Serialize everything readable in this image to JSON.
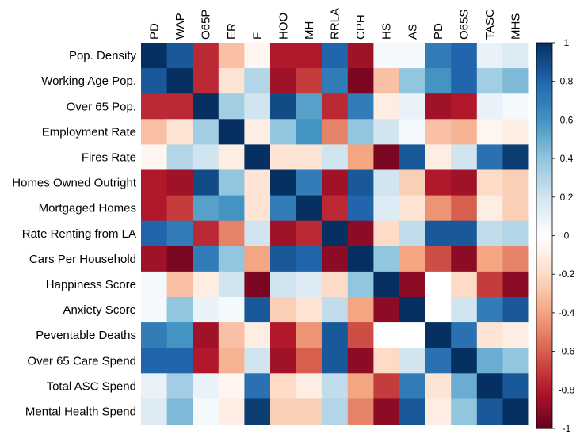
{
  "chart_data": {
    "type": "heatmap",
    "title": "",
    "row_labels": [
      "Pop. Density",
      "Working Age Pop.",
      "Over 65 Pop.",
      "Employment Rate",
      "Fires Rate",
      "Homes Owned Outright",
      "Mortgaged Homes",
      "Rate Renting from LA",
      "Cars Per Household",
      "Happiness Score",
      "Anxiety Score",
      "Peventable Deaths",
      "Over 65 Care Spend",
      "Total ASC Spend",
      "Mental Health Spend"
    ],
    "col_labels": [
      "PD",
      "WAP",
      "O65P",
      "ER",
      "F",
      "HOO",
      "MH",
      "RRLA",
      "CPH",
      "HS",
      "AS",
      "PD",
      "O65S",
      "TASC",
      "MHS"
    ],
    "values": [
      [
        1.0,
        0.85,
        -0.75,
        -0.3,
        -0.05,
        -0.8,
        -0.8,
        0.8,
        -0.85,
        0.05,
        0.05,
        0.7,
        0.8,
        0.1,
        0.15
      ],
      [
        0.85,
        1.0,
        -0.75,
        -0.15,
        0.3,
        -0.85,
        -0.7,
        0.7,
        -0.95,
        -0.3,
        0.4,
        0.6,
        0.8,
        0.35,
        0.45
      ],
      [
        -0.75,
        -0.75,
        1.0,
        0.35,
        0.2,
        0.9,
        0.55,
        -0.75,
        0.7,
        -0.1,
        0.1,
        -0.85,
        -0.8,
        0.1,
        0.05
      ],
      [
        -0.3,
        -0.15,
        0.35,
        1.0,
        -0.1,
        0.4,
        0.6,
        -0.5,
        0.4,
        0.2,
        0.05,
        -0.3,
        -0.35,
        -0.05,
        -0.1
      ],
      [
        -0.05,
        0.3,
        0.2,
        -0.1,
        1.0,
        -0.15,
        -0.15,
        0.2,
        -0.4,
        -0.95,
        0.85,
        -0.1,
        0.2,
        0.75,
        0.95
      ],
      [
        -0.8,
        -0.85,
        0.9,
        0.4,
        -0.15,
        1.0,
        0.7,
        -0.85,
        0.85,
        0.2,
        -0.25,
        -0.8,
        -0.85,
        -0.2,
        -0.25
      ],
      [
        -0.8,
        -0.7,
        0.55,
        0.6,
        -0.15,
        0.7,
        1.0,
        -0.75,
        0.8,
        0.15,
        -0.15,
        -0.45,
        -0.6,
        -0.1,
        -0.25
      ],
      [
        0.8,
        0.7,
        -0.75,
        -0.5,
        0.2,
        -0.85,
        -0.75,
        1.0,
        -0.9,
        -0.2,
        0.25,
        0.85,
        0.85,
        0.25,
        0.3
      ],
      [
        -0.85,
        -0.95,
        0.7,
        0.4,
        -0.4,
        0.85,
        0.8,
        -0.9,
        1.0,
        0.4,
        -0.4,
        -0.65,
        -0.9,
        -0.4,
        -0.5
      ],
      [
        0.05,
        -0.3,
        -0.1,
        0.2,
        -0.95,
        0.2,
        0.15,
        -0.2,
        0.4,
        1.0,
        -0.9,
        0.0,
        -0.2,
        -0.7,
        -0.9
      ],
      [
        0.05,
        0.4,
        0.1,
        0.05,
        0.85,
        -0.25,
        -0.15,
        0.25,
        -0.4,
        -0.9,
        1.0,
        0.0,
        0.2,
        0.7,
        0.85
      ],
      [
        0.7,
        0.6,
        -0.85,
        -0.3,
        -0.1,
        -0.8,
        -0.45,
        0.85,
        -0.65,
        0.0,
        0.0,
        1.0,
        0.75,
        -0.15,
        -0.1
      ],
      [
        0.8,
        0.8,
        -0.8,
        -0.35,
        0.2,
        -0.85,
        -0.6,
        0.85,
        -0.9,
        -0.2,
        0.2,
        0.75,
        1.0,
        0.5,
        0.4
      ],
      [
        0.1,
        0.35,
        0.1,
        -0.05,
        0.75,
        -0.2,
        -0.1,
        0.25,
        -0.4,
        -0.7,
        0.7,
        -0.15,
        0.5,
        1.0,
        0.85
      ],
      [
        0.15,
        0.45,
        0.05,
        -0.1,
        0.95,
        -0.25,
        -0.25,
        0.3,
        -0.5,
        -0.9,
        0.85,
        -0.1,
        0.4,
        0.85,
        1.0
      ]
    ],
    "colorbar": {
      "min": -1,
      "max": 1,
      "ticks": [
        1,
        0.8,
        0.6,
        0.4,
        0.2,
        0,
        -0.2,
        -0.4,
        -0.6,
        -0.8,
        -1
      ],
      "tick_labels": [
        "1",
        "0.8",
        "0.6",
        "0.4",
        "0.2",
        "0",
        "-0.2",
        "-0.4",
        "-0.6",
        "-0.8",
        "-1"
      ]
    },
    "colorscale": [
      "#67001F",
      "#B2182B",
      "#D6604D",
      "#F4A582",
      "#FDDBC7",
      "#FFFFFF",
      "#D1E5F0",
      "#92C5DE",
      "#4393C3",
      "#2166AC",
      "#053061"
    ],
    "legend": "right"
  }
}
